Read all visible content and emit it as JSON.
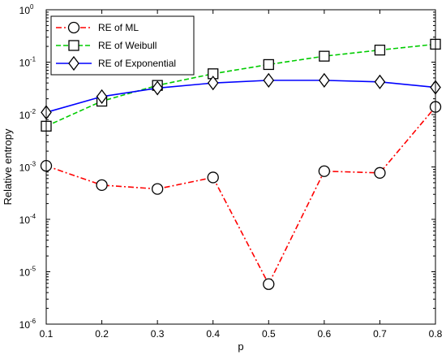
{
  "chart_data": {
    "type": "line",
    "xlabel": "p",
    "ylabel": "Relative entropy",
    "x": [
      0.1,
      0.2,
      0.3,
      0.4,
      0.5,
      0.6,
      0.7,
      0.8
    ],
    "xlim": [
      0.1,
      0.8
    ],
    "x_ticks": [
      "0.1",
      "0.2",
      "0.3",
      "0.4",
      "0.5",
      "0.6",
      "0.7",
      "0.8"
    ],
    "y_scale": "log",
    "ylim": [
      1e-06,
      1
    ],
    "y_tick_exponents": [
      "-6",
      "-5",
      "-4",
      "-3",
      "-2",
      "-1",
      "0"
    ],
    "y_tick_base": "10",
    "grid": false,
    "legend_position": "top-left",
    "series": [
      {
        "name": "RE of ML",
        "color": "#ff0000",
        "line_style": "dash-dot",
        "marker": "circle",
        "values": [
          0.00105,
          0.00045,
          0.00038,
          0.00063,
          5.8e-06,
          0.00083,
          0.00077,
          0.014
        ]
      },
      {
        "name": "RE of Weibull",
        "color": "#00cc00",
        "line_style": "dashed",
        "marker": "square",
        "values": [
          0.006,
          0.018,
          0.036,
          0.06,
          0.09,
          0.13,
          0.17,
          0.22
        ]
      },
      {
        "name": "RE of Exponential",
        "color": "#0000ff",
        "line_style": "solid",
        "marker": "diamond",
        "values": [
          0.011,
          0.022,
          0.032,
          0.04,
          0.045,
          0.045,
          0.042,
          0.033
        ]
      }
    ]
  }
}
